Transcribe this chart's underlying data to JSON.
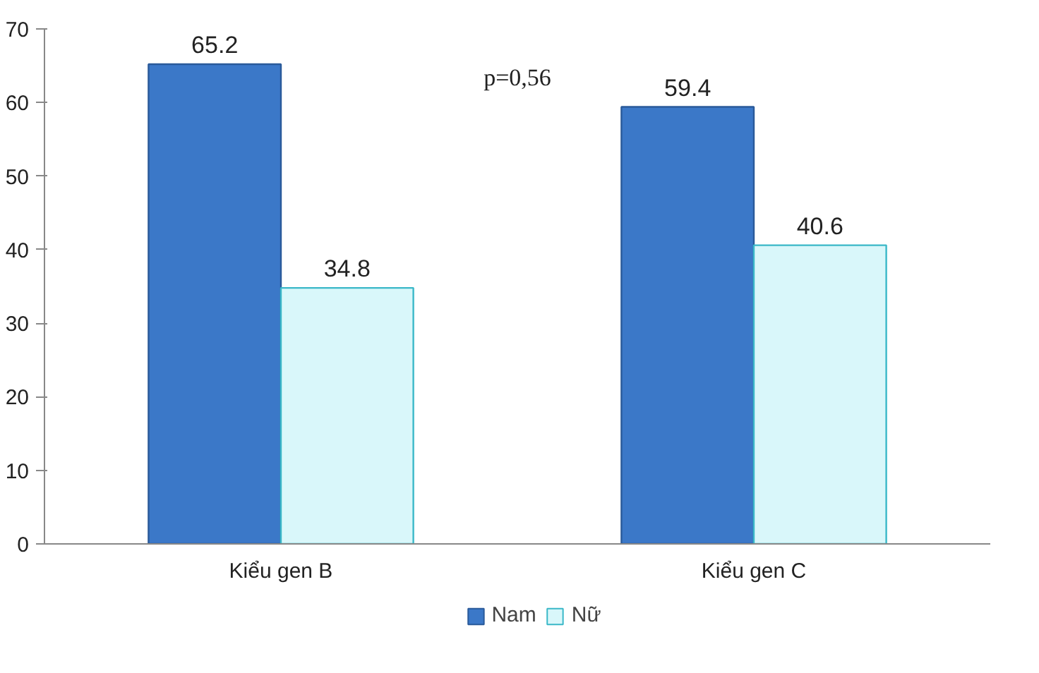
{
  "chart_data": {
    "type": "bar",
    "categories": [
      "Kiểu gen B",
      "Kiểu gen C"
    ],
    "series": [
      {
        "name": "Nam",
        "color": "#3b78c8",
        "values": [
          65.2,
          59.4
        ]
      },
      {
        "name": "Nữ",
        "color": "#d9f7fa",
        "values": [
          34.8,
          40.6
        ]
      }
    ],
    "ylim": [
      0,
      70
    ],
    "yticks": [
      0,
      10,
      20,
      30,
      40,
      50,
      60,
      70
    ],
    "grid": false,
    "legend": "bottom",
    "data_labels": true,
    "annotations": [
      "p=0,56"
    ]
  }
}
